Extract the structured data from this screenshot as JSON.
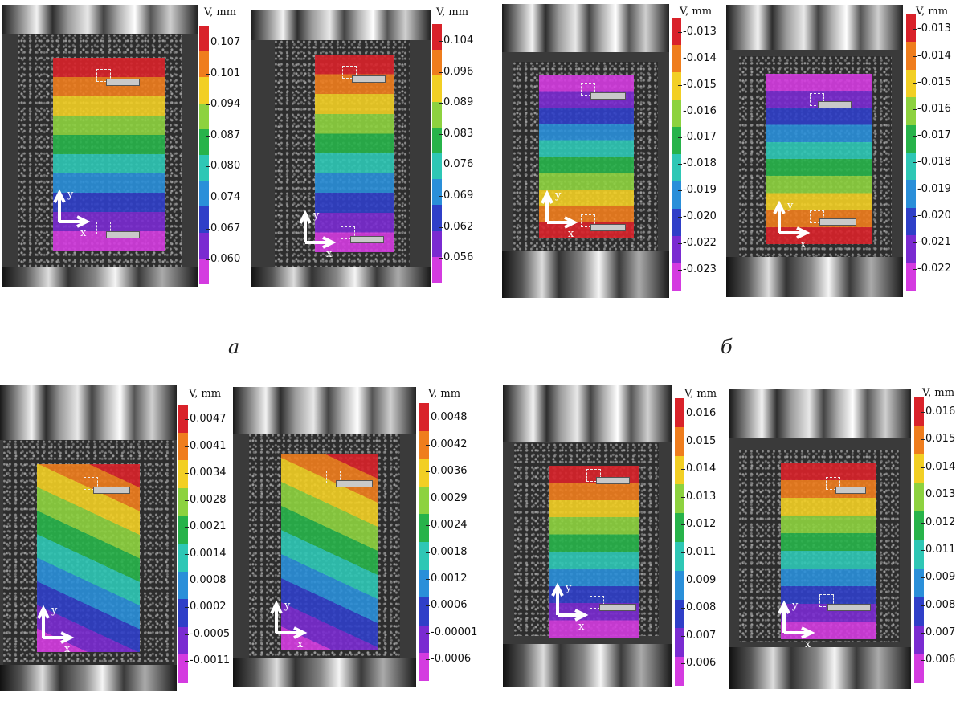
{
  "legend_title": "V, mm",
  "palette": [
    "#d9222a",
    "#ef7d1d",
    "#f2cf24",
    "#8dd23f",
    "#27b34a",
    "#2ec7b5",
    "#2a8fd9",
    "#2f3fc8",
    "#7a2bd1",
    "#d43be0"
  ],
  "captions": {
    "a": "а",
    "b": "б"
  },
  "panels": [
    {
      "id": "p1",
      "pattern": "bands-down",
      "ticks": [
        "0.107",
        "0.101",
        "0.094",
        "0.087",
        "0.080",
        "0.074",
        "0.067",
        "0.060"
      ]
    },
    {
      "id": "p2",
      "pattern": "bands-down",
      "ticks": [
        "0.104",
        "0.096",
        "0.089",
        "0.083",
        "0.076",
        "0.069",
        "0.062",
        "0.056"
      ]
    },
    {
      "id": "p3",
      "pattern": "bands-up",
      "ticks": [
        "-0.013",
        "-0.014",
        "-0.015",
        "-0.016",
        "-0.017",
        "-0.018",
        "-0.019",
        "-0.020",
        "-0.022",
        "-0.023"
      ]
    },
    {
      "id": "p4",
      "pattern": "bands-up",
      "ticks": [
        "-0.013",
        "-0.014",
        "-0.015",
        "-0.016",
        "-0.017",
        "-0.018",
        "-0.019",
        "-0.020",
        "-0.021",
        "-0.022"
      ]
    },
    {
      "id": "p5",
      "pattern": "diagonal",
      "ticks": [
        "0.0047",
        "0.0041",
        "0.0034",
        "0.0028",
        "0.0021",
        "0.0014",
        "0.0008",
        "0.0002",
        "-0.0005",
        "-0.0011"
      ]
    },
    {
      "id": "p6",
      "pattern": "diagonal",
      "ticks": [
        "0.0048",
        "0.0042",
        "0.0036",
        "0.0029",
        "0.0024",
        "0.0018",
        "0.0012",
        "0.0006",
        "-0.00001",
        "-0.0006"
      ]
    },
    {
      "id": "p7",
      "pattern": "bands-down",
      "ticks": [
        "0.016",
        "0.015",
        "0.014",
        "0.013",
        "0.012",
        "0.011",
        "0.009",
        "0.008",
        "0.007",
        "0.006"
      ]
    },
    {
      "id": "p8",
      "pattern": "bands-down",
      "ticks": [
        "0.016",
        "0.015",
        "0.014",
        "0.013",
        "0.012",
        "0.011",
        "0.009",
        "0.008",
        "0.007",
        "0.006"
      ]
    }
  ],
  "axis_labels": {
    "x": "x",
    "y": "y"
  }
}
